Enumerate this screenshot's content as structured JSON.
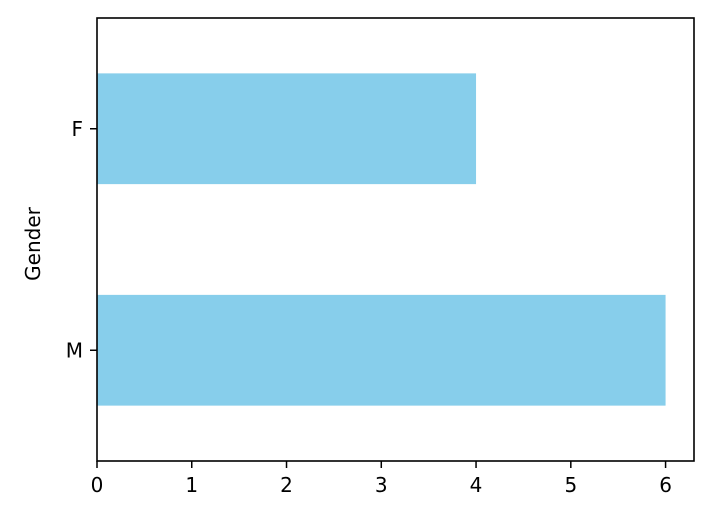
{
  "chart_data": {
    "type": "bar",
    "orientation": "horizontal",
    "categories": [
      "F",
      "M"
    ],
    "values": [
      4,
      6
    ],
    "title": "",
    "xlabel": "",
    "ylabel": "Gender",
    "xlim": [
      0,
      6.3
    ],
    "xticks": [
      0,
      1,
      2,
      3,
      4,
      5,
      6
    ],
    "grid": false,
    "legend": "none",
    "colors": {
      "bar": "#87ceeb",
      "axis": "#000000",
      "background": "#ffffff"
    }
  }
}
